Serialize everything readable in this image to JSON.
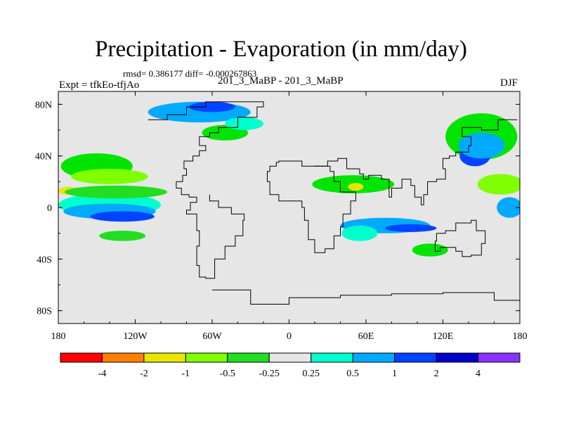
{
  "title": "Precipitation - Evaporation (in mm/day)",
  "stats_text": "rmsd= 0.386177  diff= -0.000267863",
  "subtitle": "201_3_MaBP - 201_3_MaBP",
  "left_label": "Expt = tfkEo-tfjAo",
  "right_label": "DJF",
  "map": {
    "projection": "cylindrical-equidistant",
    "lon_range": [
      -180,
      180
    ],
    "lat_range": [
      -90,
      90
    ],
    "background_color": "#e6e6e6",
    "x_ticks": [
      "180",
      "120W",
      "60W",
      "0",
      "60E",
      "120E",
      "180"
    ],
    "y_ticks": [
      "80N",
      "40N",
      "0",
      "40S",
      "80S"
    ]
  },
  "colorbar": {
    "labels": [
      "-4",
      "-2",
      "-1",
      "-0.5",
      "-0.25",
      "0.25",
      "0.5",
      "1",
      "2",
      "4"
    ],
    "colors": [
      "#ff0000",
      "#ff7f00",
      "#e6e600",
      "#80ff00",
      "#22dd22",
      "#e6e6e6",
      "#00ffcc",
      "#00aaff",
      "#0044ff",
      "#0000cc",
      "#8833ff"
    ]
  },
  "fields": [
    {
      "name": "n-pacific-jet",
      "color": "#00e400",
      "lon": -150,
      "lat": 32,
      "rx": 28,
      "ry": 10
    },
    {
      "name": "n-pacific-jet-2",
      "color": "#80ff00",
      "lon": -140,
      "lat": 24,
      "rx": 30,
      "ry": 6
    },
    {
      "name": "n-pacific-yellow",
      "color": "#e6e600",
      "lon": -172,
      "lat": 13,
      "rx": 8,
      "ry": 3
    },
    {
      "name": "trop-pacific-band",
      "color": "#00ffcc",
      "lon": -140,
      "lat": 2,
      "rx": 40,
      "ry": 9
    },
    {
      "name": "trop-pacific-light",
      "color": "#00aaff",
      "lon": -140,
      "lat": -3,
      "rx": 36,
      "ry": 6
    },
    {
      "name": "trop-pacific-blue",
      "color": "#0044ff",
      "lon": -130,
      "lat": -7,
      "rx": 25,
      "ry": 4
    },
    {
      "name": "trop-pacific-green",
      "color": "#22dd22",
      "lon": -135,
      "lat": 12,
      "rx": 40,
      "ry": 5
    },
    {
      "name": "sh-pacific",
      "color": "#22dd22",
      "lon": -130,
      "lat": -22,
      "rx": 18,
      "ry": 4
    },
    {
      "name": "arctic-canada",
      "color": "#00aaff",
      "lon": -70,
      "lat": 74,
      "rx": 40,
      "ry": 8
    },
    {
      "name": "arctic-canada-blue",
      "color": "#0044ff",
      "lon": -60,
      "lat": 78,
      "rx": 18,
      "ry": 4
    },
    {
      "name": "n-atlantic",
      "color": "#00e400",
      "lon": -50,
      "lat": 58,
      "rx": 18,
      "ry": 6
    },
    {
      "name": "n-atlantic-cyan",
      "color": "#00ffcc",
      "lon": -35,
      "lat": 65,
      "rx": 15,
      "ry": 5
    },
    {
      "name": "africa-green",
      "color": "#00e400",
      "lon": 50,
      "lat": 18,
      "rx": 32,
      "ry": 7
    },
    {
      "name": "africa-yellow",
      "color": "#e6e600",
      "lon": 52,
      "lat": 16,
      "rx": 6,
      "ry": 3
    },
    {
      "name": "indian-ocean",
      "color": "#00aaff",
      "lon": 75,
      "lat": -14,
      "rx": 35,
      "ry": 6
    },
    {
      "name": "indian-ocean-blue",
      "color": "#0044ff",
      "lon": 95,
      "lat": -16,
      "rx": 20,
      "ry": 3
    },
    {
      "name": "indian-ocean-cyan",
      "color": "#00ffcc",
      "lon": 55,
      "lat": -20,
      "rx": 14,
      "ry": 6
    },
    {
      "name": "s-indian-green",
      "color": "#00e400",
      "lon": 110,
      "lat": -33,
      "rx": 14,
      "ry": 5
    },
    {
      "name": "asia-pacific-green",
      "color": "#00e400",
      "lon": 150,
      "lat": 55,
      "rx": 28,
      "ry": 18
    },
    {
      "name": "asia-pacific-blue",
      "color": "#0044ff",
      "lon": 145,
      "lat": 40,
      "rx": 12,
      "ry": 8
    },
    {
      "name": "asia-pacific-cyan",
      "color": "#00aaff",
      "lon": 150,
      "lat": 48,
      "rx": 18,
      "ry": 10
    },
    {
      "name": "w-pacific-green",
      "color": "#80ff00",
      "lon": 165,
      "lat": 18,
      "rx": 18,
      "ry": 8
    },
    {
      "name": "w-pacific-blue",
      "color": "#00aaff",
      "lon": 172,
      "lat": 0,
      "rx": 10,
      "ry": 8
    }
  ],
  "coastlines": [
    [
      [
        -110,
        68
      ],
      [
        -95,
        72
      ],
      [
        -80,
        78
      ],
      [
        -65,
        82
      ],
      [
        -50,
        82
      ],
      [
        -30,
        82
      ],
      [
        -20,
        78
      ],
      [
        -25,
        70
      ],
      [
        -40,
        62
      ],
      [
        -55,
        58
      ],
      [
        -62,
        55
      ],
      [
        -70,
        48
      ],
      [
        -65,
        44
      ],
      [
        -70,
        40
      ],
      [
        -75,
        36
      ],
      [
        -82,
        30
      ],
      [
        -80,
        25
      ],
      [
        -83,
        20
      ],
      [
        -88,
        15
      ],
      [
        -84,
        10
      ],
      [
        -78,
        8
      ],
      [
        -72,
        4
      ],
      [
        -77,
        -2
      ],
      [
        -80,
        -5
      ],
      [
        -72,
        -18
      ],
      [
        -70,
        -30
      ],
      [
        -72,
        -45
      ],
      [
        -70,
        -54
      ],
      [
        -65,
        -55
      ],
      [
        -58,
        -40
      ],
      [
        -50,
        -30
      ],
      [
        -42,
        -22
      ],
      [
        -36,
        -10
      ],
      [
        -35,
        -5
      ],
      [
        -45,
        0
      ],
      [
        -55,
        5
      ],
      [
        -62,
        10
      ]
    ],
    [
      [
        -15,
        28
      ],
      [
        -17,
        20
      ],
      [
        -15,
        10
      ],
      [
        -8,
        5
      ],
      [
        5,
        5
      ],
      [
        10,
        0
      ],
      [
        12,
        -10
      ],
      [
        15,
        -25
      ],
      [
        20,
        -35
      ],
      [
        28,
        -32
      ],
      [
        35,
        -22
      ],
      [
        40,
        -15
      ],
      [
        42,
        -5
      ],
      [
        48,
        5
      ],
      [
        52,
        12
      ],
      [
        44,
        12
      ],
      [
        40,
        20
      ],
      [
        35,
        28
      ],
      [
        32,
        32
      ],
      [
        20,
        32
      ],
      [
        10,
        36
      ],
      [
        0,
        36
      ],
      [
        -8,
        35
      ],
      [
        -10,
        32
      ],
      [
        -15,
        28
      ]
    ],
    [
      [
        20,
        32
      ],
      [
        30,
        36
      ],
      [
        38,
        38
      ],
      [
        45,
        30
      ],
      [
        55,
        26
      ],
      [
        58,
        22
      ],
      [
        62,
        25
      ],
      [
        72,
        22
      ],
      [
        78,
        8
      ],
      [
        80,
        15
      ],
      [
        88,
        22
      ],
      [
        95,
        17
      ],
      [
        98,
        8
      ],
      [
        103,
        2
      ],
      [
        105,
        10
      ],
      [
        108,
        20
      ],
      [
        115,
        22
      ],
      [
        122,
        30
      ],
      [
        120,
        38
      ],
      [
        125,
        40
      ],
      [
        130,
        43
      ],
      [
        140,
        48
      ],
      [
        142,
        55
      ],
      [
        135,
        62
      ],
      [
        150,
        60
      ],
      [
        160,
        60
      ],
      [
        163,
        68
      ],
      [
        178,
        68
      ]
    ],
    [
      [
        115,
        -20
      ],
      [
        122,
        -18
      ],
      [
        130,
        -12
      ],
      [
        137,
        -12
      ],
      [
        142,
        -10
      ],
      [
        146,
        -18
      ],
      [
        153,
        -28
      ],
      [
        150,
        -37
      ],
      [
        142,
        -38
      ],
      [
        135,
        -34
      ],
      [
        130,
        -31
      ],
      [
        118,
        -34
      ],
      [
        114,
        -26
      ],
      [
        115,
        -20
      ]
    ],
    [
      [
        -60,
        -64
      ],
      [
        -30,
        -75
      ],
      [
        0,
        -70
      ],
      [
        40,
        -68
      ],
      [
        80,
        -67
      ],
      [
        120,
        -66
      ],
      [
        160,
        -72
      ],
      [
        180,
        -78
      ]
    ]
  ]
}
